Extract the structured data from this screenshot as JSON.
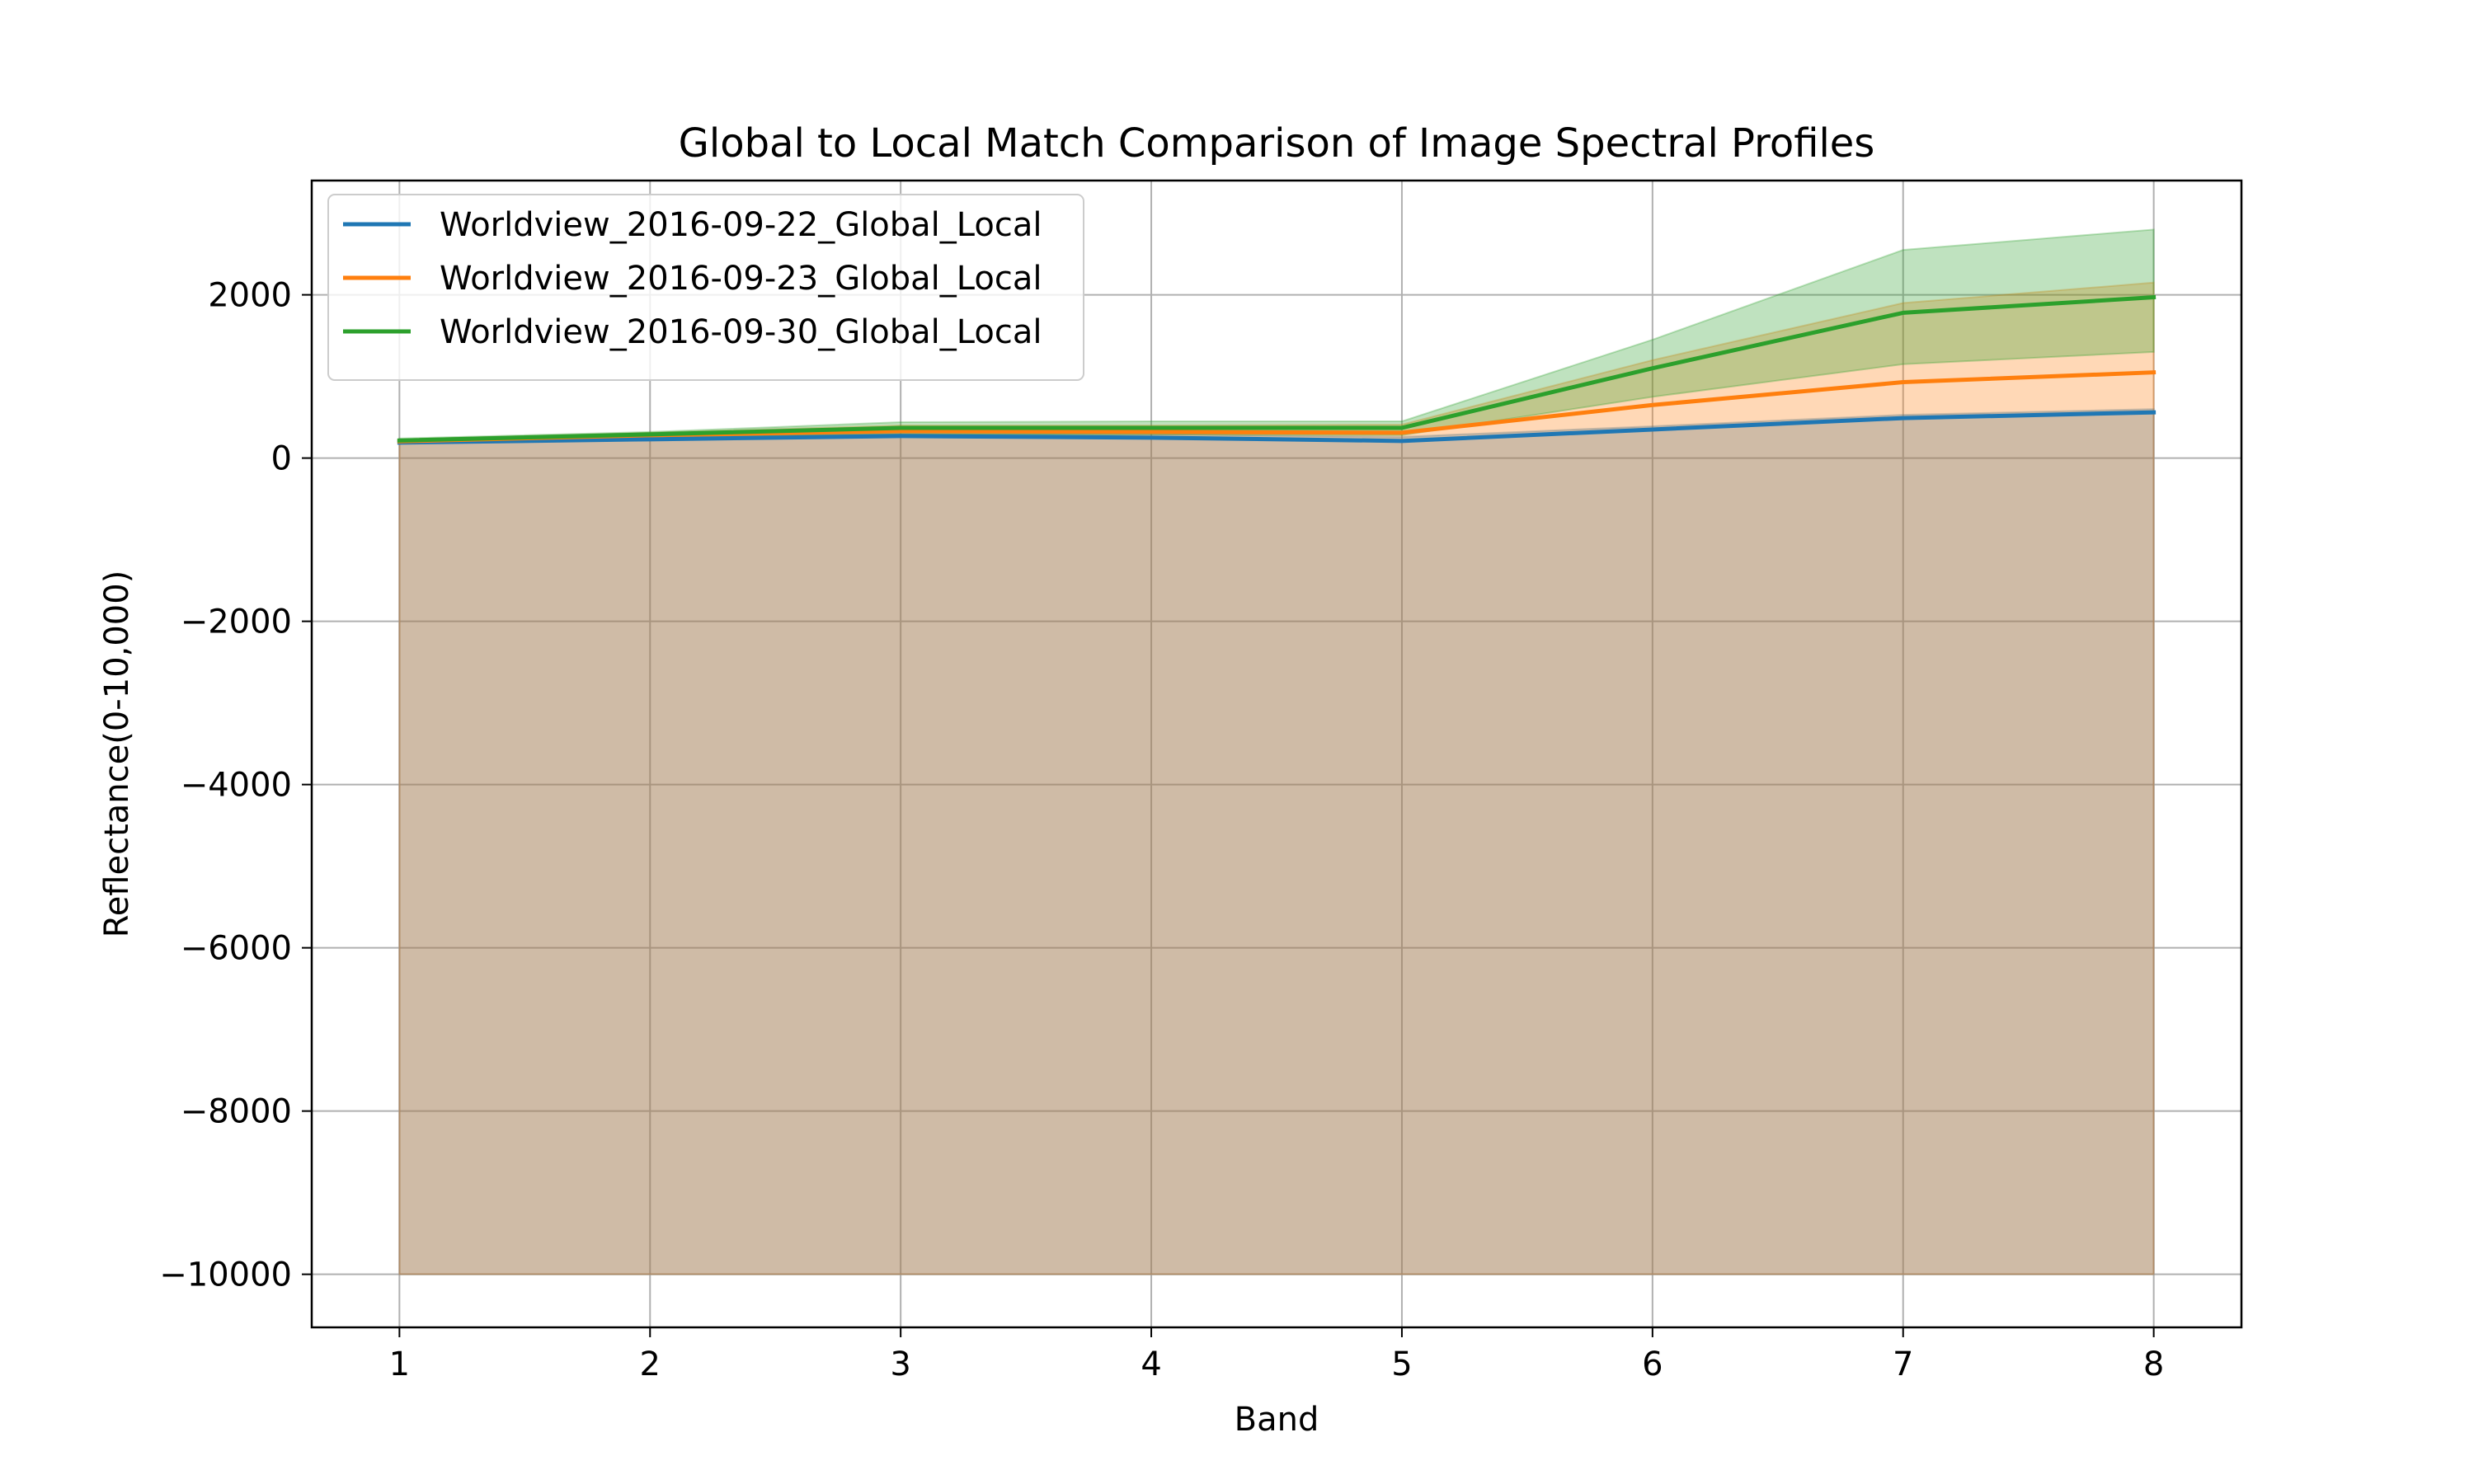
{
  "chart_data": {
    "type": "line",
    "title": "Global to Local Match Comparison of Image Spectral Profiles",
    "xlabel": "Band",
    "ylabel": "Reflectance(0-10,000)",
    "xlim": [
      0.65,
      8.35
    ],
    "ylim": [
      -10650,
      3400
    ],
    "x": [
      1,
      2,
      3,
      4,
      5,
      6,
      7,
      8
    ],
    "xticks": [
      "1",
      "2",
      "3",
      "4",
      "5",
      "6",
      "7",
      "8"
    ],
    "yticks": [
      -10000,
      -8000,
      -6000,
      -4000,
      -2000,
      0,
      2000
    ],
    "ytick_labels": [
      "−10000",
      "−8000",
      "−6000",
      "−4000",
      "−2000",
      "0",
      "2000"
    ],
    "grid": true,
    "legend_position": "upper-left",
    "series": [
      {
        "name": "Worldview_2016-09-22_Global_Local",
        "color": "#1f77b4",
        "values": [
          190,
          230,
          270,
          250,
          210,
          350,
          490,
          560
        ],
        "band_lower": [
          -10000,
          -10000,
          -10000,
          -10000,
          -10000,
          -10000,
          -10000,
          -10000
        ],
        "band_upper": [
          220,
          260,
          300,
          290,
          260,
          390,
          530,
          600
        ]
      },
      {
        "name": "Worldview_2016-09-23_Global_Local",
        "color": "#ff7f0e",
        "values": [
          205,
          280,
          330,
          320,
          310,
          650,
          930,
          1050
        ],
        "band_lower": [
          -10000,
          -10000,
          -10000,
          -10000,
          -10000,
          -10000,
          -10000,
          -10000
        ],
        "band_upper": [
          230,
          310,
          400,
          400,
          410,
          1200,
          1900,
          2150
        ]
      },
      {
        "name": "Worldview_2016-09-30_Global_Local",
        "color": "#2ca02c",
        "values": [
          215,
          290,
          370,
          370,
          370,
          1100,
          1780,
          1970
        ],
        "band_lower": [
          190,
          260,
          290,
          290,
          280,
          750,
          1150,
          1300
        ],
        "band_upper": [
          240,
          320,
          440,
          450,
          450,
          1450,
          2550,
          2800
        ]
      }
    ]
  }
}
